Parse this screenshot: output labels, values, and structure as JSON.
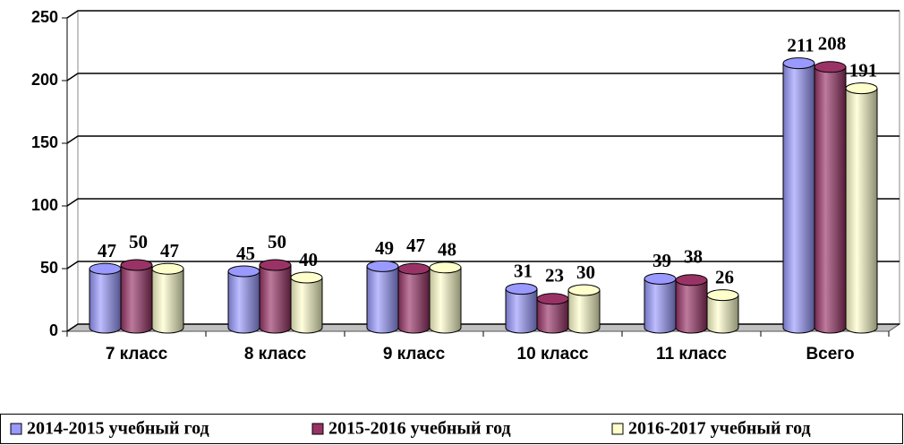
{
  "chart_data": {
    "type": "bar",
    "categories": [
      "7 класс",
      "8 класс",
      "9 класс",
      "10 класс",
      "11 класс",
      "Всего"
    ],
    "series": [
      {
        "name": "2014-2015 учебный год",
        "color": "#9999ff",
        "values": [
          47,
          45,
          49,
          31,
          39,
          211
        ]
      },
      {
        "name": "2015-2016 учебный год",
        "color": "#993366",
        "values": [
          50,
          50,
          47,
          23,
          38,
          208
        ]
      },
      {
        "name": "2016-2017 учебный год",
        "color": "#ffffcc",
        "values": [
          47,
          40,
          48,
          30,
          26,
          191
        ]
      }
    ],
    "ylim": [
      0,
      250
    ],
    "yticks": [
      0,
      50,
      100,
      150,
      200,
      250
    ],
    "grid": true,
    "legend": "bottom"
  }
}
